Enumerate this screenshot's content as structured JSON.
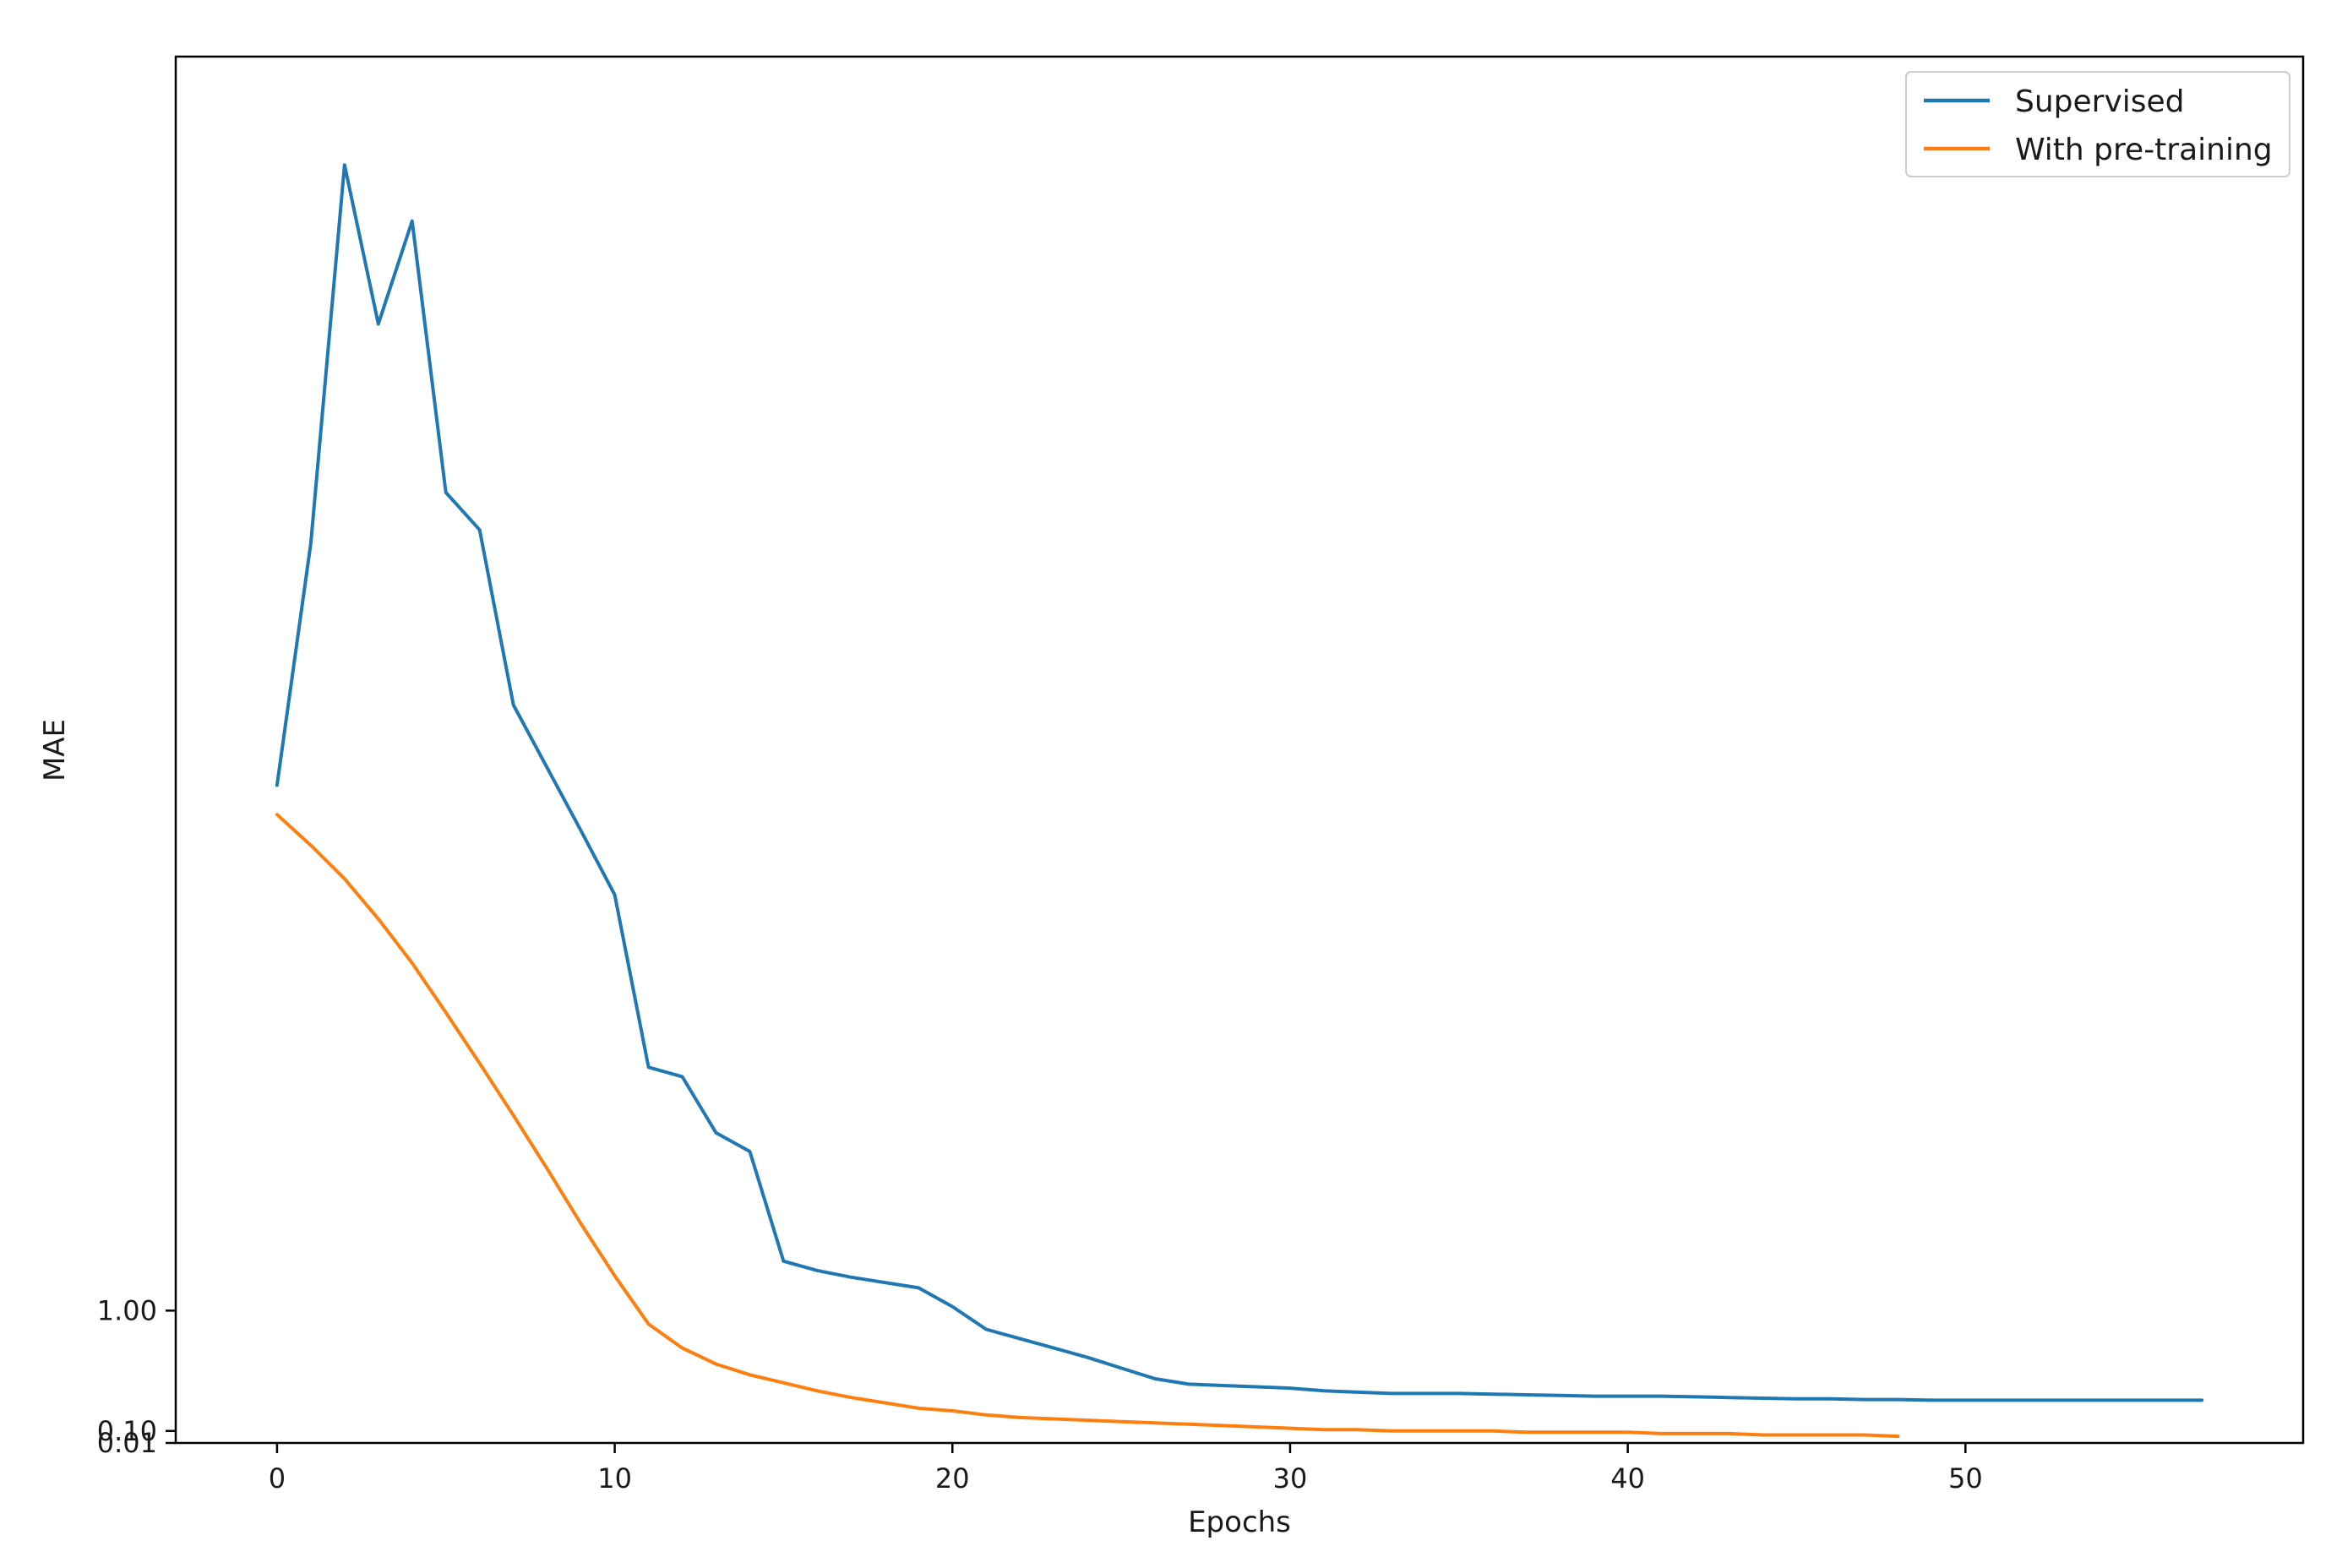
{
  "chart_data": {
    "type": "line",
    "title": "",
    "xlabel": "Epochs",
    "ylabel": "MAE",
    "xlim": [
      -3,
      60
    ],
    "ylim": [
      0.01,
      10.38
    ],
    "xticks": [
      0,
      10,
      20,
      30,
      40,
      50
    ],
    "yticks": [
      {
        "value": 0.01,
        "label": "0.01"
      },
      {
        "value": 0.1,
        "label": "0.10"
      },
      {
        "value": 1.0,
        "label": "1.00"
      }
    ],
    "grid": false,
    "legend": {
      "position": "top-right"
    },
    "series": [
      {
        "name": "Supervised",
        "color": "#1f77b4",
        "x": [
          0,
          1,
          2,
          3,
          4,
          5,
          6,
          7,
          8,
          9,
          10,
          11,
          12,
          13,
          14,
          15,
          16,
          17,
          18,
          19,
          20,
          21,
          22,
          23,
          24,
          25,
          26,
          27,
          28,
          29,
          30,
          31,
          32,
          33,
          34,
          35,
          36,
          37,
          38,
          39,
          40,
          41,
          42,
          43,
          44,
          45,
          46,
          47,
          48,
          49,
          50,
          51,
          52,
          53,
          54,
          55,
          56,
          57
        ],
        "values": [
          4.93,
          6.74,
          9.57,
          8.38,
          9.15,
          7.12,
          6.84,
          5.53,
          5.06,
          4.59,
          4.11,
          2.82,
          2.75,
          2.33,
          2.19,
          1.37,
          1.3,
          1.25,
          1.21,
          1.17,
          1.03,
          0.86,
          0.79,
          0.72,
          0.65,
          0.57,
          0.49,
          0.45,
          0.44,
          0.43,
          0.42,
          0.4,
          0.39,
          0.38,
          0.38,
          0.38,
          0.375,
          0.37,
          0.365,
          0.36,
          0.36,
          0.36,
          0.355,
          0.35,
          0.345,
          0.34,
          0.34,
          0.335,
          0.335,
          0.33,
          0.33,
          0.33,
          0.33,
          0.33,
          0.33,
          0.33,
          0.33,
          0.33
        ]
      },
      {
        "name": "With pre-training",
        "color": "#ff7f0e",
        "x": [
          0,
          1,
          2,
          3,
          4,
          5,
          6,
          7,
          8,
          9,
          10,
          11,
          12,
          13,
          14,
          15,
          16,
          17,
          18,
          19,
          20,
          21,
          22,
          23,
          24,
          25,
          26,
          27,
          28,
          29,
          30,
          31,
          32,
          33,
          34,
          35,
          36,
          37,
          38,
          39,
          40,
          41,
          42,
          43,
          44,
          45,
          46,
          47,
          48
        ],
        "values": [
          4.71,
          4.48,
          4.23,
          3.93,
          3.6,
          3.23,
          2.85,
          2.46,
          2.06,
          1.65,
          1.26,
          0.9,
          0.72,
          0.6,
          0.52,
          0.46,
          0.4,
          0.35,
          0.31,
          0.27,
          0.25,
          0.22,
          0.2,
          0.19,
          0.18,
          0.17,
          0.16,
          0.15,
          0.14,
          0.13,
          0.12,
          0.11,
          0.11,
          0.1,
          0.1,
          0.1,
          0.1,
          0.09,
          0.09,
          0.09,
          0.09,
          0.08,
          0.08,
          0.08,
          0.07,
          0.07,
          0.07,
          0.07,
          0.06
        ]
      }
    ]
  }
}
